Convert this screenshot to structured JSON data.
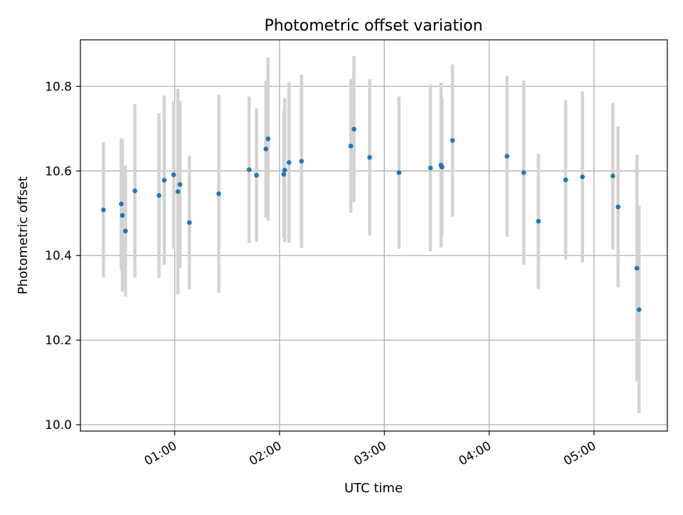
{
  "chart_data": {
    "type": "scatter",
    "title": "Photometric offset variation",
    "xlabel": "UTC time",
    "ylabel": "Photometric offset",
    "xlim": [
      0.1,
      5.7
    ],
    "ylim": [
      9.985,
      10.91
    ],
    "xticks": [
      {
        "value": 1,
        "label": "01:00"
      },
      {
        "value": 2,
        "label": "02:00"
      },
      {
        "value": 3,
        "label": "03:00"
      },
      {
        "value": 4,
        "label": "04:00"
      },
      {
        "value": 5,
        "label": "05:00"
      }
    ],
    "yticks": [
      {
        "value": 10.0,
        "label": "10.0"
      },
      {
        "value": 10.2,
        "label": "10.2"
      },
      {
        "value": 10.4,
        "label": "10.4"
      },
      {
        "value": 10.6,
        "label": "10.6"
      },
      {
        "value": 10.8,
        "label": "10.8"
      }
    ],
    "grid": true,
    "point_color": "#1f77b4",
    "errorbar_color": "#d3d3d3",
    "points": [
      {
        "x": 0.32,
        "y": 10.508,
        "err": 0.16
      },
      {
        "x": 0.49,
        "y": 10.522,
        "err": 0.155
      },
      {
        "x": 0.5,
        "y": 10.495,
        "err": 0.18
      },
      {
        "x": 0.53,
        "y": 10.458,
        "err": 0.155
      },
      {
        "x": 0.62,
        "y": 10.553,
        "err": 0.205
      },
      {
        "x": 0.85,
        "y": 10.542,
        "err": 0.195
      },
      {
        "x": 0.9,
        "y": 10.578,
        "err": 0.2
      },
      {
        "x": 0.99,
        "y": 10.591,
        "err": 0.175
      },
      {
        "x": 1.03,
        "y": 10.551,
        "err": 0.243
      },
      {
        "x": 1.05,
        "y": 10.568,
        "err": 0.198
      },
      {
        "x": 1.14,
        "y": 10.478,
        "err": 0.158
      },
      {
        "x": 1.42,
        "y": 10.546,
        "err": 0.234
      },
      {
        "x": 1.71,
        "y": 10.603,
        "err": 0.173
      },
      {
        "x": 1.78,
        "y": 10.59,
        "err": 0.158
      },
      {
        "x": 1.87,
        "y": 10.652,
        "err": 0.162
      },
      {
        "x": 1.89,
        "y": 10.676,
        "err": 0.193
      },
      {
        "x": 2.04,
        "y": 10.592,
        "err": 0.15
      },
      {
        "x": 2.05,
        "y": 10.602,
        "err": 0.17
      },
      {
        "x": 2.09,
        "y": 10.62,
        "err": 0.19
      },
      {
        "x": 2.21,
        "y": 10.623,
        "err": 0.205
      },
      {
        "x": 2.68,
        "y": 10.659,
        "err": 0.158
      },
      {
        "x": 2.71,
        "y": 10.699,
        "err": 0.173
      },
      {
        "x": 2.86,
        "y": 10.632,
        "err": 0.185
      },
      {
        "x": 3.14,
        "y": 10.596,
        "err": 0.18
      },
      {
        "x": 3.44,
        "y": 10.607,
        "err": 0.197
      },
      {
        "x": 3.54,
        "y": 10.614,
        "err": 0.195
      },
      {
        "x": 3.55,
        "y": 10.609,
        "err": 0.165
      },
      {
        "x": 3.65,
        "y": 10.672,
        "err": 0.18
      },
      {
        "x": 4.17,
        "y": 10.635,
        "err": 0.19
      },
      {
        "x": 4.33,
        "y": 10.596,
        "err": 0.218
      },
      {
        "x": 4.47,
        "y": 10.481,
        "err": 0.16
      },
      {
        "x": 4.73,
        "y": 10.579,
        "err": 0.188
      },
      {
        "x": 4.89,
        "y": 10.586,
        "err": 0.202
      },
      {
        "x": 5.18,
        "y": 10.588,
        "err": 0.173
      },
      {
        "x": 5.23,
        "y": 10.515,
        "err": 0.19
      },
      {
        "x": 5.41,
        "y": 10.37,
        "err": 0.268
      },
      {
        "x": 5.43,
        "y": 10.272,
        "err": 0.245
      }
    ]
  }
}
